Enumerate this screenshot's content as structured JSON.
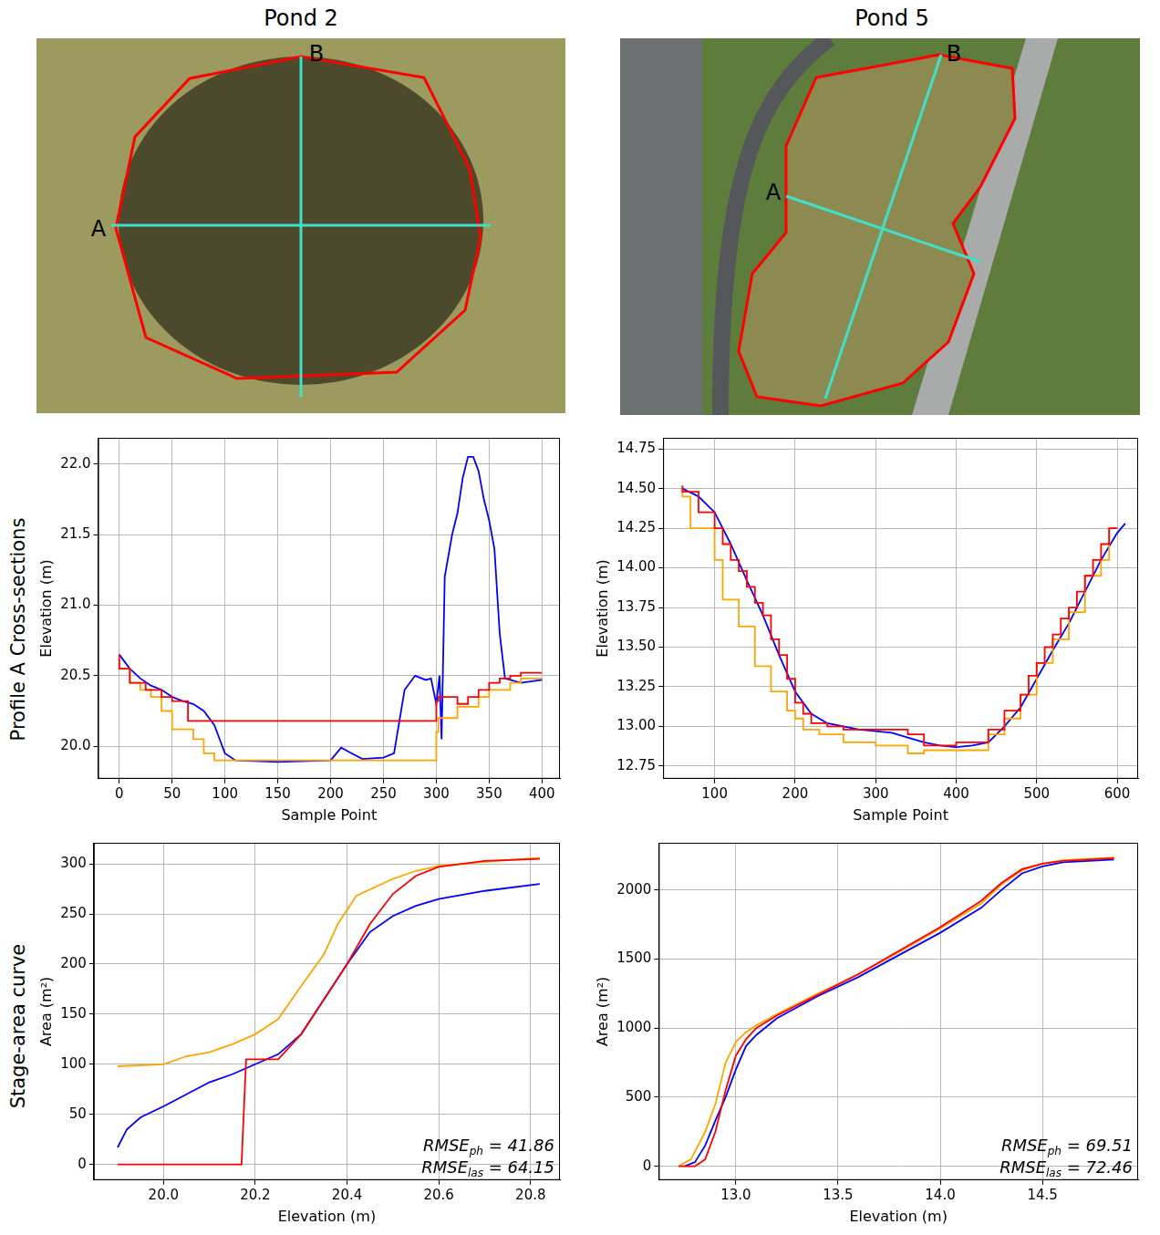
{
  "maps": [
    {
      "title": "Pond 2",
      "labels": [
        "A",
        "B"
      ]
    },
    {
      "title": "Pond 5",
      "labels": [
        "A",
        "B"
      ]
    }
  ],
  "row_labels": [
    "Profile A Cross-sections",
    "Stage-area curve"
  ],
  "chart_data": [
    {
      "type": "line",
      "xlabel": "Sample Point",
      "ylabel": "Elevation (m)",
      "grid": true,
      "xlim": [
        -20,
        417
      ],
      "xticks": [
        0,
        50,
        100,
        150,
        200,
        250,
        300,
        350,
        400
      ],
      "ylim": [
        19.77,
        22.185
      ],
      "yticks": [
        {
          "value": 20,
          "label": "20.0"
        },
        20.5,
        {
          "value": 21,
          "label": "21.0"
        },
        21.5,
        {
          "value": 22,
          "label": "22.0"
        }
      ],
      "series": [
        {
          "color": "#ff0000",
          "line_style": "steps",
          "x": [
            0,
            10,
            25,
            40,
            50,
            65,
            80,
            300,
            302,
            320,
            330,
            340,
            350,
            360,
            370,
            380,
            400
          ],
          "values": [
            20.65,
            20.55,
            20.45,
            20.4,
            20.35,
            20.32,
            20.18,
            20.18,
            20.32,
            20.35,
            20.3,
            20.35,
            20.4,
            20.45,
            20.48,
            20.5,
            20.52
          ]
        },
        {
          "color": "#ffa500",
          "line_style": "steps",
          "x": [
            0,
            10,
            20,
            30,
            40,
            50,
            70,
            80,
            90,
            100,
            300,
            302,
            320,
            340,
            350,
            370,
            380,
            400
          ],
          "values": [
            20.62,
            20.55,
            20.45,
            20.4,
            20.35,
            20.25,
            20.12,
            20.05,
            19.95,
            19.9,
            19.9,
            20.1,
            20.2,
            20.28,
            20.35,
            20.4,
            20.45,
            20.48
          ]
        },
        {
          "color": "#0000ff",
          "line_style": "solid",
          "x": [
            0,
            10,
            20,
            30,
            40,
            50,
            60,
            70,
            80,
            90,
            95,
            100,
            110,
            150,
            200,
            210,
            220,
            230,
            250,
            260,
            270,
            280,
            290,
            295,
            300,
            303,
            305,
            308,
            315,
            320,
            325,
            330,
            335,
            340,
            345,
            350,
            355,
            360,
            365,
            370,
            380,
            400
          ],
          "values": [
            20.65,
            20.55,
            20.48,
            20.43,
            20.4,
            20.35,
            20.32,
            20.3,
            20.25,
            20.15,
            20.05,
            19.95,
            19.9,
            19.89,
            19.9,
            19.99,
            19.95,
            19.91,
            19.92,
            19.95,
            20.4,
            20.5,
            20.47,
            20.48,
            20.3,
            20.5,
            20.05,
            21.2,
            21.5,
            21.65,
            21.9,
            22.05,
            22.05,
            21.95,
            21.75,
            21.6,
            21.4,
            20.8,
            20.48,
            20.47,
            20.45,
            20.47
          ]
        }
      ]
    },
    {
      "type": "line",
      "xlabel": "Sample Point",
      "ylabel": "Elevation (m)",
      "grid": true,
      "xlim": [
        36,
        626
      ],
      "xticks": [
        100,
        200,
        300,
        400,
        500,
        600
      ],
      "ylim": [
        12.67,
        14.82
      ],
      "yticks": [
        12.75,
        {
          "value": 13,
          "label": "13.00"
        },
        13.25,
        {
          "value": 13.5,
          "label": "13.50"
        },
        13.75,
        {
          "value": 14,
          "label": "14.00"
        },
        14.25,
        {
          "value": 14.5,
          "label": "14.50"
        },
        14.75
      ],
      "series": [
        {
          "color": "#ff0000",
          "line_style": "steps",
          "x": [
            60,
            80,
            100,
            110,
            120,
            130,
            140,
            150,
            160,
            170,
            180,
            190,
            200,
            210,
            220,
            240,
            260,
            300,
            340,
            360,
            400,
            440,
            460,
            480,
            490,
            500,
            510,
            520,
            530,
            540,
            550,
            560,
            570,
            580,
            590,
            600
          ],
          "values": [
            14.52,
            14.48,
            14.35,
            14.25,
            14.15,
            14.05,
            13.98,
            13.88,
            13.78,
            13.7,
            13.55,
            13.45,
            13.3,
            13.15,
            13.08,
            13.02,
            13.0,
            12.98,
            12.98,
            12.95,
            12.88,
            12.9,
            12.98,
            13.1,
            13.2,
            13.32,
            13.4,
            13.5,
            13.58,
            13.68,
            13.75,
            13.85,
            13.95,
            14.05,
            14.15,
            14.25
          ]
        },
        {
          "color": "#ffa500",
          "line_style": "steps",
          "x": [
            60,
            70,
            75,
            100,
            110,
            130,
            150,
            170,
            190,
            200,
            210,
            230,
            260,
            300,
            340,
            360,
            440,
            460,
            480,
            500,
            520,
            540,
            560,
            580,
            590,
            600
          ],
          "values": [
            14.5,
            14.45,
            14.25,
            14.25,
            14.05,
            13.8,
            13.63,
            13.38,
            13.22,
            13.1,
            13.05,
            12.98,
            12.95,
            12.9,
            12.88,
            12.83,
            12.85,
            12.95,
            13.05,
            13.2,
            13.4,
            13.55,
            13.72,
            13.95,
            14.05,
            14.25
          ]
        },
        {
          "color": "#0000ff",
          "line_style": "solid",
          "x": [
            60,
            80,
            100,
            120,
            140,
            160,
            180,
            200,
            220,
            240,
            260,
            280,
            300,
            320,
            340,
            360,
            380,
            400,
            420,
            440,
            460,
            480,
            500,
            520,
            540,
            560,
            580,
            600,
            610
          ],
          "values": [
            14.5,
            14.45,
            14.35,
            14.15,
            13.92,
            13.7,
            13.45,
            13.22,
            13.08,
            13.02,
            13.0,
            12.98,
            12.97,
            12.96,
            12.93,
            12.9,
            12.88,
            12.87,
            12.88,
            12.9,
            13.0,
            13.12,
            13.3,
            13.48,
            13.65,
            13.85,
            14.05,
            14.22,
            14.28
          ]
        }
      ]
    },
    {
      "type": "line",
      "xlabel": "Elevation (m)",
      "ylabel": "Area (m²)",
      "grid": true,
      "xlim": [
        19.848,
        20.864
      ],
      "xticks": [
        {
          "value": 20,
          "label": "20.0"
        },
        20.2,
        20.4,
        20.6,
        20.8
      ],
      "ylim": [
        -15.6,
        321
      ],
      "yticks": [
        0,
        50,
        100,
        150,
        200,
        250,
        300
      ],
      "annotations": [
        [
          {
            "text": "RMSE"
          },
          {
            "text": "ph",
            "sub": true
          },
          {
            "text": " = 41.86"
          }
        ],
        [
          {
            "text": "RMSE"
          },
          {
            "text": "las",
            "sub": true
          },
          {
            "text": " = 64.15"
          }
        ]
      ],
      "series": [
        {
          "color": "#ff0000",
          "line_style": "solid",
          "x": [
            19.9,
            20.17,
            20.18,
            20.25,
            20.3,
            20.35,
            20.4,
            20.45,
            20.5,
            20.55,
            20.6,
            20.7,
            20.82
          ],
          "values": [
            0,
            0,
            105,
            105,
            130,
            165,
            200,
            240,
            270,
            288,
            297,
            303,
            305
          ]
        },
        {
          "color": "#ffa500",
          "line_style": "solid",
          "x": [
            19.9,
            20.0,
            20.05,
            20.1,
            20.15,
            20.2,
            20.25,
            20.3,
            20.35,
            20.38,
            20.42,
            20.5,
            20.55,
            20.6,
            20.7,
            20.82
          ],
          "values": [
            98,
            100,
            108,
            112,
            120,
            130,
            145,
            178,
            210,
            240,
            268,
            285,
            293,
            298,
            302,
            306
          ]
        },
        {
          "color": "#0000ff",
          "line_style": "solid",
          "x": [
            19.9,
            19.92,
            19.95,
            20.0,
            20.05,
            20.1,
            20.15,
            20.2,
            20.25,
            20.3,
            20.35,
            20.4,
            20.45,
            20.5,
            20.55,
            20.6,
            20.7,
            20.82
          ],
          "values": [
            17,
            35,
            47,
            58,
            70,
            82,
            90,
            100,
            110,
            130,
            165,
            200,
            232,
            248,
            258,
            265,
            273,
            280
          ]
        }
      ]
    },
    {
      "type": "line",
      "xlabel": "Elevation (m)",
      "ylabel": "Area (m²)",
      "grid": true,
      "xlim": [
        12.623,
        14.968
      ],
      "xticks": [
        {
          "value": 13,
          "label": "13.0"
        },
        13.5,
        {
          "value": 14,
          "label": "14.0"
        },
        14.5
      ],
      "ylim": [
        -100,
        2341
      ],
      "yticks": [
        0,
        500,
        1000,
        1500,
        2000
      ],
      "annotations": [
        [
          {
            "text": "RMSE"
          },
          {
            "text": "ph",
            "sub": true
          },
          {
            "text": " = 69.51"
          }
        ],
        [
          {
            "text": "RMSE"
          },
          {
            "text": "las",
            "sub": true
          },
          {
            "text": " = 72.46"
          }
        ]
      ],
      "series": [
        {
          "color": "#ff0000",
          "line_style": "solid",
          "x": [
            12.72,
            12.8,
            12.85,
            12.9,
            12.95,
            13.0,
            13.05,
            13.1,
            13.2,
            13.4,
            13.6,
            13.8,
            14.0,
            14.2,
            14.3,
            14.4,
            14.5,
            14.6,
            14.85
          ],
          "values": [
            0,
            0,
            50,
            250,
            550,
            800,
            920,
            1000,
            1090,
            1240,
            1390,
            1560,
            1730,
            1920,
            2050,
            2150,
            2190,
            2210,
            2230
          ]
        },
        {
          "color": "#ffa500",
          "line_style": "solid",
          "x": [
            12.72,
            12.78,
            12.85,
            12.9,
            12.95,
            13.0,
            13.05,
            13.1,
            13.2,
            13.4,
            13.6,
            13.8,
            14.0,
            14.2,
            14.3,
            14.4,
            14.5,
            14.6,
            14.85
          ],
          "values": [
            0,
            50,
            250,
            450,
            750,
            900,
            970,
            1020,
            1100,
            1250,
            1390,
            1550,
            1720,
            1900,
            2040,
            2140,
            2190,
            2215,
            2235
          ]
        },
        {
          "color": "#0000ff",
          "line_style": "solid",
          "x": [
            12.75,
            12.8,
            12.85,
            12.9,
            12.95,
            13.0,
            13.05,
            13.1,
            13.2,
            13.4,
            13.6,
            13.8,
            14.0,
            14.2,
            14.3,
            14.4,
            14.5,
            14.6,
            14.85
          ],
          "values": [
            0,
            30,
            150,
            330,
            500,
            700,
            870,
            950,
            1070,
            1230,
            1370,
            1530,
            1690,
            1870,
            2000,
            2120,
            2170,
            2200,
            2220
          ]
        }
      ]
    }
  ]
}
